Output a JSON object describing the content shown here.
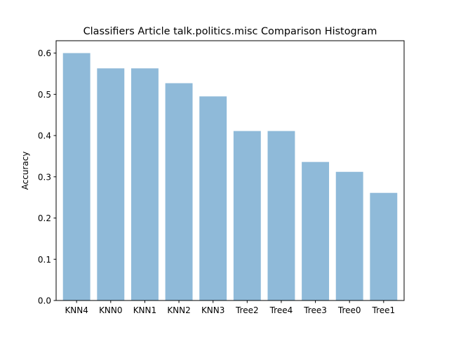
{
  "chart_data": {
    "type": "bar",
    "title": "Classifiers Article talk.politics.misc Comparison Histogram",
    "xlabel": "",
    "ylabel": "Accuracy",
    "categories": [
      "KNN4",
      "KNN0",
      "KNN1",
      "KNN2",
      "KNN3",
      "Tree2",
      "Tree4",
      "Tree3",
      "Tree0",
      "Tree1"
    ],
    "values": [
      0.6,
      0.563,
      0.563,
      0.527,
      0.495,
      0.411,
      0.411,
      0.336,
      0.312,
      0.261
    ],
    "ylim": [
      0,
      0.63
    ],
    "yticks": [
      0.0,
      0.1,
      0.2,
      0.3,
      0.4,
      0.5,
      0.6
    ],
    "grid": false,
    "bar_color": "#8fbad9"
  }
}
